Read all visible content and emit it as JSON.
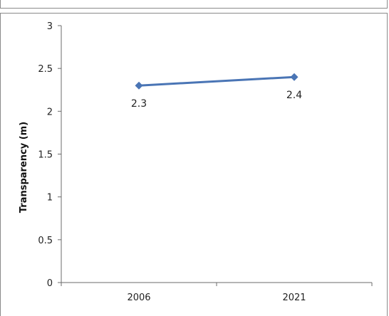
{
  "chart_data": {
    "type": "line",
    "title": "",
    "xlabel": "",
    "ylabel": "Transparency (m)",
    "categories": [
      "2006",
      "2021"
    ],
    "series": [
      {
        "values": [
          2.3,
          2.4
        ],
        "color": "#4a75b5",
        "data_labels": [
          "2.3",
          "2.4"
        ]
      }
    ],
    "ylim": [
      0,
      3
    ],
    "yticks": [
      "0",
      "0.5",
      "1",
      "1.5",
      "2",
      "2.5",
      "3"
    ],
    "grid": false,
    "legend": "none",
    "marker": "diamond"
  }
}
